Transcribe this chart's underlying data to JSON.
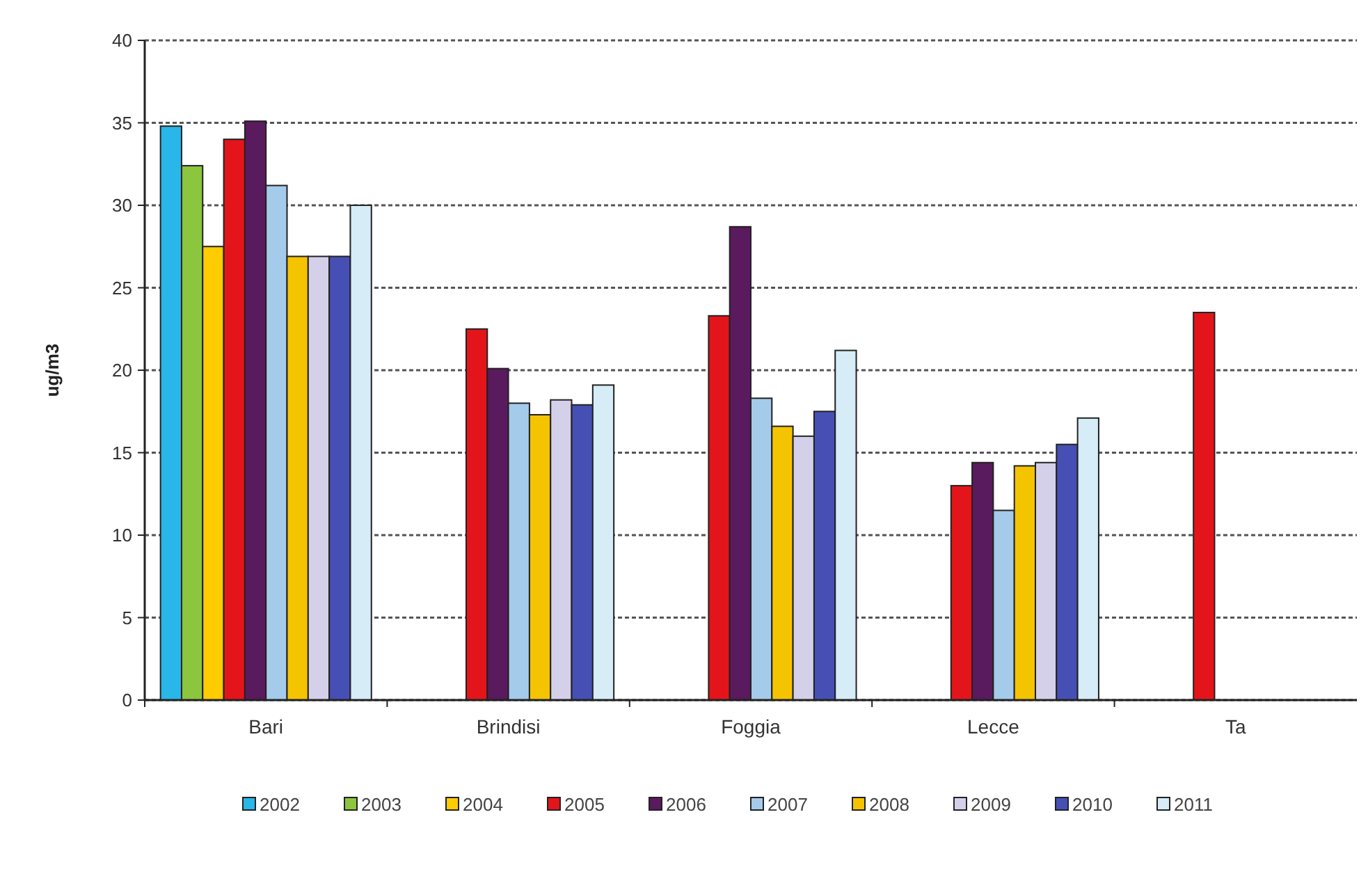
{
  "chart_data": {
    "type": "bar",
    "ylabel": "ug/m3",
    "categories": [
      "Bari",
      "Brindisi",
      "Foggia",
      "Lecce",
      "Ta"
    ],
    "series": [
      {
        "name": "2002",
        "color": "#29b6e8",
        "values": [
          34.8,
          null,
          null,
          null,
          null
        ]
      },
      {
        "name": "2003",
        "color": "#8cc63f",
        "values": [
          32.4,
          null,
          null,
          null,
          null
        ]
      },
      {
        "name": "2004",
        "color": "#ffcc00",
        "values": [
          27.5,
          null,
          null,
          null,
          null
        ]
      },
      {
        "name": "2005",
        "color": "#e3151a",
        "values": [
          34.0,
          22.5,
          23.3,
          13.0,
          23.5
        ]
      },
      {
        "name": "2006",
        "color": "#5a1a5e",
        "values": [
          35.1,
          20.1,
          28.7,
          14.4,
          null
        ]
      },
      {
        "name": "2007",
        "color": "#a5cbeb",
        "values": [
          31.2,
          18.0,
          18.3,
          11.5,
          null
        ]
      },
      {
        "name": "2008",
        "color": "#f5c400",
        "values": [
          26.9,
          17.3,
          16.6,
          14.2,
          null
        ]
      },
      {
        "name": "2009",
        "color": "#d5d0ea",
        "values": [
          26.9,
          18.2,
          16.0,
          14.4,
          null
        ]
      },
      {
        "name": "2010",
        "color": "#4650b4",
        "values": [
          26.9,
          17.9,
          17.5,
          15.5,
          null
        ]
      },
      {
        "name": "2011",
        "color": "#d6ecf7",
        "values": [
          30.0,
          19.1,
          21.2,
          17.1,
          null
        ]
      }
    ],
    "ylim": [
      0,
      40
    ],
    "yticks": [
      0,
      5,
      10,
      15,
      20,
      25,
      30,
      35,
      40
    ],
    "grid": "y",
    "legend": "bottom"
  }
}
